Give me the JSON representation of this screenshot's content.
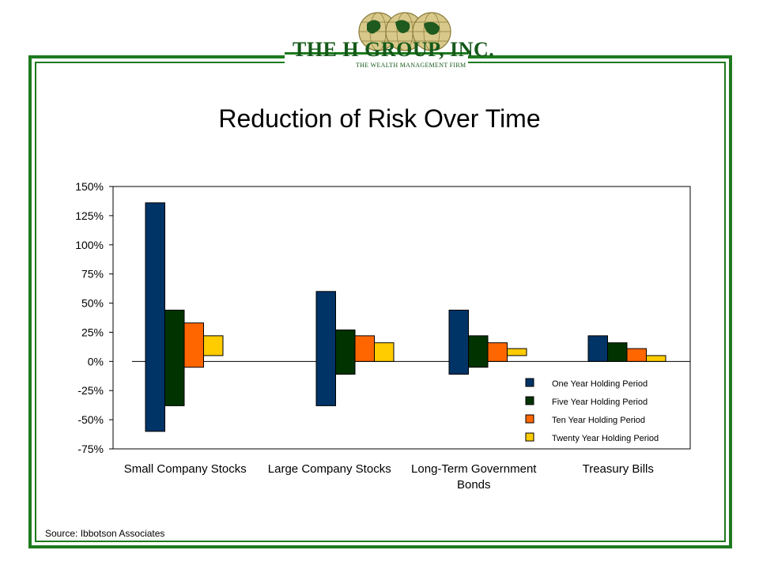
{
  "logo": {
    "name": "THE H GROUP, INC.",
    "tagline": "THE WEALTH MANAGEMENT FIRM"
  },
  "source": "Source: Ibbotson Associates",
  "colors": {
    "frame": "#1e7a1e",
    "series": [
      "#003366",
      "#003300",
      "#ff6600",
      "#ffcc00"
    ]
  },
  "chart_data": {
    "type": "bar",
    "title": "Reduction of Risk Over Time",
    "xlabel": "",
    "ylabel": "",
    "ylim": [
      -75,
      150
    ],
    "y_ticks": [
      "150%",
      "125%",
      "100%",
      "75%",
      "50%",
      "25%",
      "0%",
      "-25%",
      "-50%",
      "-75%"
    ],
    "y_tick_values": [
      150,
      125,
      100,
      75,
      50,
      25,
      0,
      -25,
      -50,
      -75
    ],
    "categories": [
      "Small Company Stocks",
      "Large Company Stocks",
      "Long-Term Government Bonds",
      "Treasury Bills"
    ],
    "category_lines": [
      [
        "Small Company Stocks"
      ],
      [
        "Large Company Stocks"
      ],
      [
        "Long-Term Government",
        "Bonds"
      ],
      [
        "Treasury Bills"
      ]
    ],
    "legend_position": "bottom-right (inside plot)",
    "grid": false,
    "series": [
      {
        "name": "One Year Holding Period",
        "ranges": [
          [
            -60,
            136
          ],
          [
            -38,
            60
          ],
          [
            -11,
            44
          ],
          [
            0,
            22
          ]
        ]
      },
      {
        "name": "Five Year Holding Period",
        "ranges": [
          [
            -38,
            44
          ],
          [
            -11,
            27
          ],
          [
            -5,
            22
          ],
          [
            0,
            16
          ]
        ]
      },
      {
        "name": "Ten Year Holding Period",
        "ranges": [
          [
            -5,
            33
          ],
          [
            0,
            22
          ],
          [
            0,
            16
          ],
          [
            0,
            11
          ]
        ]
      },
      {
        "name": "Twenty Year Holding Period",
        "ranges": [
          [
            5,
            22
          ],
          [
            0,
            16
          ],
          [
            5,
            11
          ],
          [
            0,
            5
          ]
        ]
      }
    ]
  }
}
